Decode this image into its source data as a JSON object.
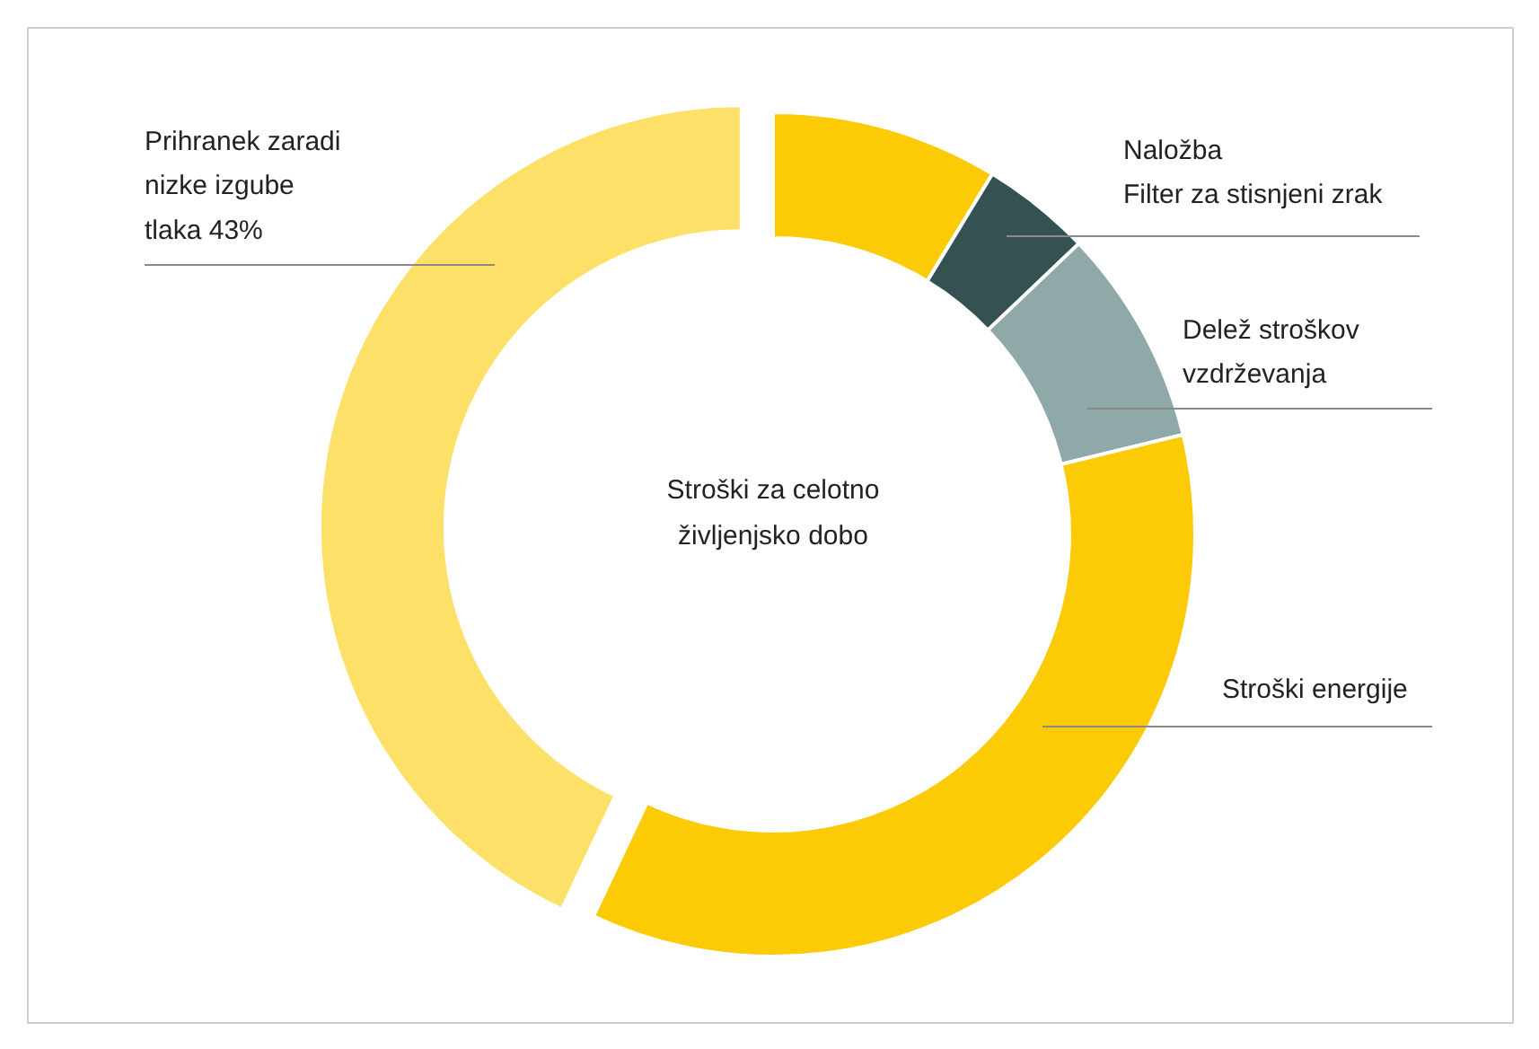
{
  "chart_data": {
    "type": "donut",
    "categories": [
      null,
      "Naložba\nFilter za stisnjeni zrak",
      "Delež stroškov\nvzdrževanja",
      "Stroški energije",
      "Prihranek zaradi\nnizke izgube\ntlaka 43%"
    ],
    "values": [
      8.7,
      4.2,
      8.3,
      35.8,
      43
    ],
    "colors": [
      "#fccb05",
      "#365152",
      "#8fa8a8",
      "#fccb05",
      "#fde068"
    ],
    "annotations": [
      "Stroški za celotno\nživljenjsko dobo"
    ]
  }
}
